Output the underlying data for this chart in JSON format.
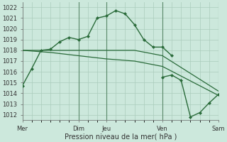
{
  "background_color": "#cce8dc",
  "plot_bg_color": "#cce8dc",
  "grid_color": "#aaccbb",
  "line_color": "#2a6b3a",
  "marker_color": "#2a6b3a",
  "vline_color": "#5a8a6a",
  "ylabel_text": "Pression niveau de la mer( hPa )",
  "ylim": [
    1011.5,
    1022.5
  ],
  "yticks": [
    1012,
    1013,
    1014,
    1015,
    1016,
    1017,
    1018,
    1019,
    1020,
    1021,
    1022
  ],
  "xtick_labels": [
    "Mer",
    "Dim",
    "Jeu",
    "Ven",
    "Sam"
  ],
  "xtick_positions": [
    0,
    6,
    9,
    15,
    21
  ],
  "series1_x": [
    0,
    1,
    2,
    3,
    4,
    5,
    6,
    7,
    8,
    9,
    10,
    11,
    12,
    13,
    14,
    15,
    16
  ],
  "series1_y": [
    1014.7,
    1016.3,
    1018.0,
    1018.1,
    1018.8,
    1019.2,
    1019.0,
    1019.3,
    1021.0,
    1021.2,
    1021.7,
    1021.4,
    1020.4,
    1019.0,
    1018.3,
    1018.3,
    1017.5
  ],
  "series2_x": [
    0,
    3,
    6,
    9,
    12,
    15,
    21
  ],
  "series2_y": [
    1018.0,
    1018.0,
    1018.0,
    1018.0,
    1018.0,
    1017.5,
    1014.2
  ],
  "series3_x": [
    0,
    3,
    6,
    9,
    12,
    15,
    21
  ],
  "series3_y": [
    1018.0,
    1017.8,
    1017.5,
    1017.2,
    1017.0,
    1016.5,
    1013.8
  ],
  "series4_x": [
    15,
    16,
    17,
    18,
    19,
    20,
    21
  ],
  "series4_y": [
    1015.5,
    1015.7,
    1015.2,
    1011.8,
    1012.2,
    1013.1,
    1013.9
  ],
  "vlines_x": [
    6,
    9,
    15,
    21
  ],
  "title_fontsize": 7,
  "tick_fontsize": 6
}
